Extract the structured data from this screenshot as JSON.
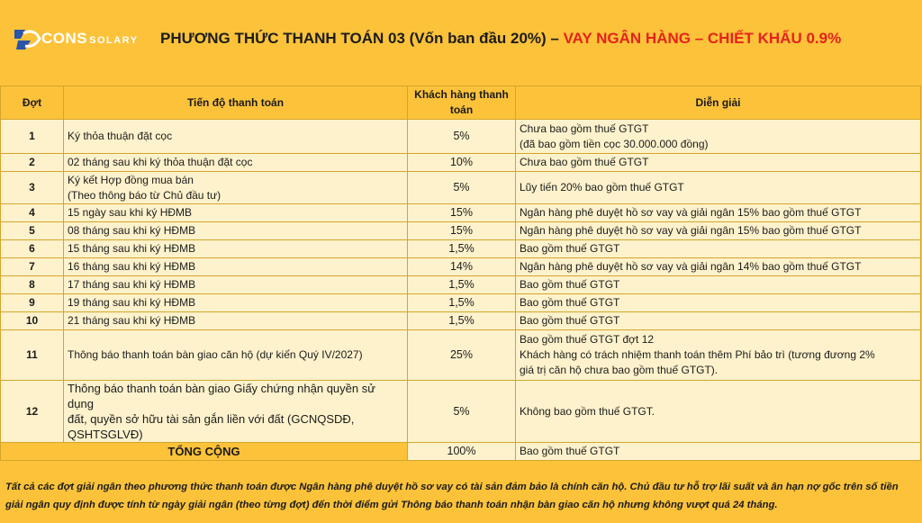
{
  "logo": {
    "brand": "CONS",
    "sub": "SOLARY"
  },
  "title": {
    "main": "PHƯƠNG THỨC THANH TOÁN 03 (Vốn ban đầu 20%) – ",
    "highlight": "VAY NGÂN HÀNG – CHIẾT KHẤU 0.9%"
  },
  "colors": {
    "background": "#fcc23a",
    "row": "#fef2cc",
    "highlight": "#e5231c"
  },
  "table": {
    "headers": {
      "dot": "Đợt",
      "progress": "Tiến độ thanh toán",
      "percent": "Khách hàng thanh toán",
      "notes": "Diễn giải"
    },
    "rows": [
      {
        "dot": "1",
        "progress": [
          "Ký thỏa thuận đặt cọc"
        ],
        "percent": "5%",
        "notes": [
          "Chưa bao gồm thuế GTGT",
          "(đã bao gồm tiền cọc 30.000.000 đồng)"
        ]
      },
      {
        "dot": "2",
        "progress": [
          "02 tháng sau khi ký thỏa thuận đặt cọc"
        ],
        "percent": "10%",
        "notes": [
          "Chưa bao gồm thuế GTGT"
        ]
      },
      {
        "dot": "3",
        "progress": [
          "Ký kết Hợp đồng mua bán",
          "(Theo thông báo từ Chủ đầu tư)"
        ],
        "percent": "5%",
        "notes": [
          "Lũy tiến 20% bao gồm thuế GTGT"
        ]
      },
      {
        "dot": "4",
        "progress": [
          "15 ngày sau khi ký HĐMB"
        ],
        "percent": "15%",
        "notes": [
          "Ngân hàng phê duyệt hồ sơ vay và giải ngân 15% bao gồm thuế GTGT"
        ]
      },
      {
        "dot": "5",
        "progress": [
          "08 tháng sau khi ký HĐMB"
        ],
        "percent": "15%",
        "notes": [
          "Ngân hàng phê duyệt hồ sơ vay và giải ngân 15% bao gồm thuế GTGT"
        ]
      },
      {
        "dot": "6",
        "progress": [
          "15 tháng sau khi ký HĐMB"
        ],
        "percent": "1,5%",
        "notes": [
          "Bao gồm thuế GTGT"
        ]
      },
      {
        "dot": "7",
        "progress": [
          "16 tháng sau khi ký HĐMB"
        ],
        "percent": "14%",
        "notes": [
          "Ngân hàng phê duyệt hồ sơ vay và giải ngân 14% bao gồm thuế GTGT"
        ]
      },
      {
        "dot": "8",
        "progress": [
          "17 tháng sau khi ký HĐMB"
        ],
        "percent": "1,5%",
        "notes": [
          "Bao gồm thuế GTGT"
        ]
      },
      {
        "dot": "9",
        "progress": [
          "19 tháng sau khi ký HĐMB"
        ],
        "percent": "1,5%",
        "notes": [
          "Bao gồm thuế GTGT"
        ]
      },
      {
        "dot": "10",
        "progress": [
          "21 tháng sau khi ký HĐMB"
        ],
        "percent": "1,5%",
        "notes": [
          "Bao gồm thuế GTGT"
        ]
      },
      {
        "dot": "11",
        "progress": [
          "Thông báo thanh toán bàn giao căn hộ (dự kiến Quý IV/2027)"
        ],
        "percent": "25%",
        "notes": [
          "Bao gồm thuế GTGT đợt 12",
          "Khách hàng có trách nhiệm thanh toán thêm Phí bảo trì (tương đương 2%",
          "giá trị căn hộ chưa bao gồm thuế GTGT)."
        ]
      },
      {
        "dot": "12",
        "progress": [
          "Thông báo thanh toán bàn giao Giấy chứng nhận quyền sử dụng",
          "đất, quyền sở hữu tài sản gắn liền với đất (GCNQSDĐ,",
          "QSHTSGLVĐ)"
        ],
        "percent": "5%",
        "notes": [
          "Không bao gồm thuế GTGT."
        ]
      }
    ],
    "total": {
      "label": "TỔNG CỘNG",
      "percent": "100%",
      "notes": "Bao gồm thuế GTGT"
    }
  },
  "footnote": "Tất cả các đợt giải ngân theo phương thức thanh toán được Ngân hàng phê duyệt hồ sơ vay có tài sản đảm bảo là chính căn hộ. Chủ đầu tư hỗ trợ lãi suất và ân hạn nợ gốc trên số tiền giải ngân quy định được tính từ ngày giải ngân (theo từng đợt) đến thời điểm gửi Thông báo thanh toán nhận bàn giao căn hộ nhưng không vượt quá 24 tháng."
}
